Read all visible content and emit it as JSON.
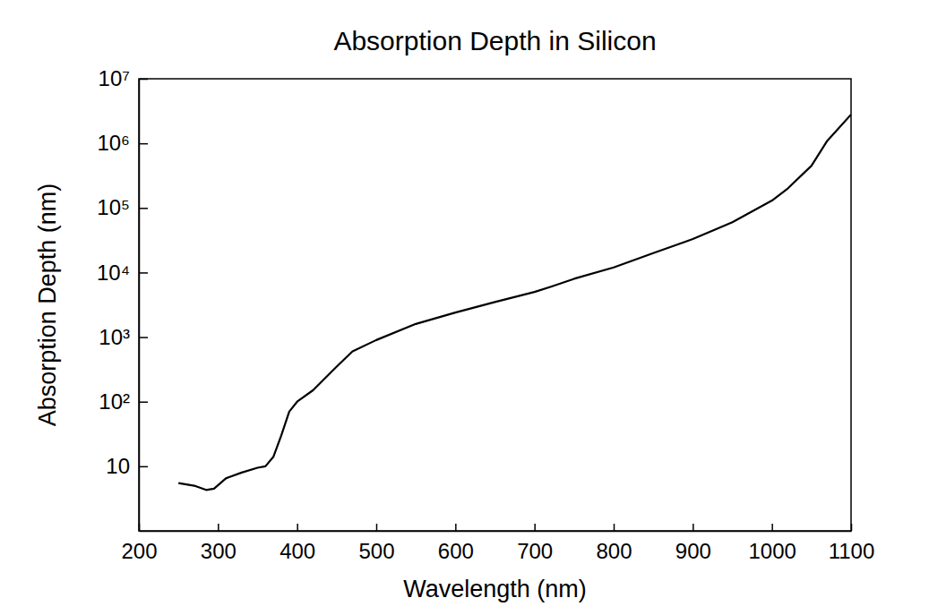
{
  "chart_data": {
    "type": "line",
    "title": "Absorption Depth in Silicon",
    "x_label": "Wavelength (nm)",
    "y_label": "Absorption Depth (nm)",
    "x": [
      250,
      270,
      285,
      295,
      310,
      330,
      350,
      360,
      370,
      380,
      390,
      400,
      420,
      450,
      470,
      500,
      550,
      600,
      650,
      700,
      720,
      750,
      800,
      850,
      900,
      950,
      1000,
      1020,
      1050,
      1070,
      1080,
      1100
    ],
    "values": [
      5.5,
      5,
      4.3,
      4.5,
      6.5,
      8,
      9.5,
      10,
      14,
      30,
      70,
      100,
      150,
      350,
      600,
      900,
      1600,
      2400,
      3500,
      5000,
      6000,
      8000,
      12000,
      20000,
      33000,
      60000,
      130000,
      200000,
      450000,
      1100000,
      1500000,
      2800000
    ],
    "color": "#000000",
    "log": "y",
    "xlim": [
      200,
      1100
    ],
    "ylim": [
      1,
      10000000
    ],
    "xticks": [
      200,
      300,
      400,
      500,
      600,
      700,
      800,
      900,
      1000,
      1100
    ],
    "yticks": [
      10,
      {
        "value": 100,
        "label": "10²"
      },
      {
        "value": 1000,
        "label": "10³"
      },
      {
        "value": 10000,
        "label": "10⁴"
      },
      {
        "value": 100000,
        "label": "10⁵"
      },
      {
        "value": 1000000,
        "label": "10⁶"
      },
      {
        "value": 10000000,
        "label": "10⁷"
      }
    ]
  }
}
